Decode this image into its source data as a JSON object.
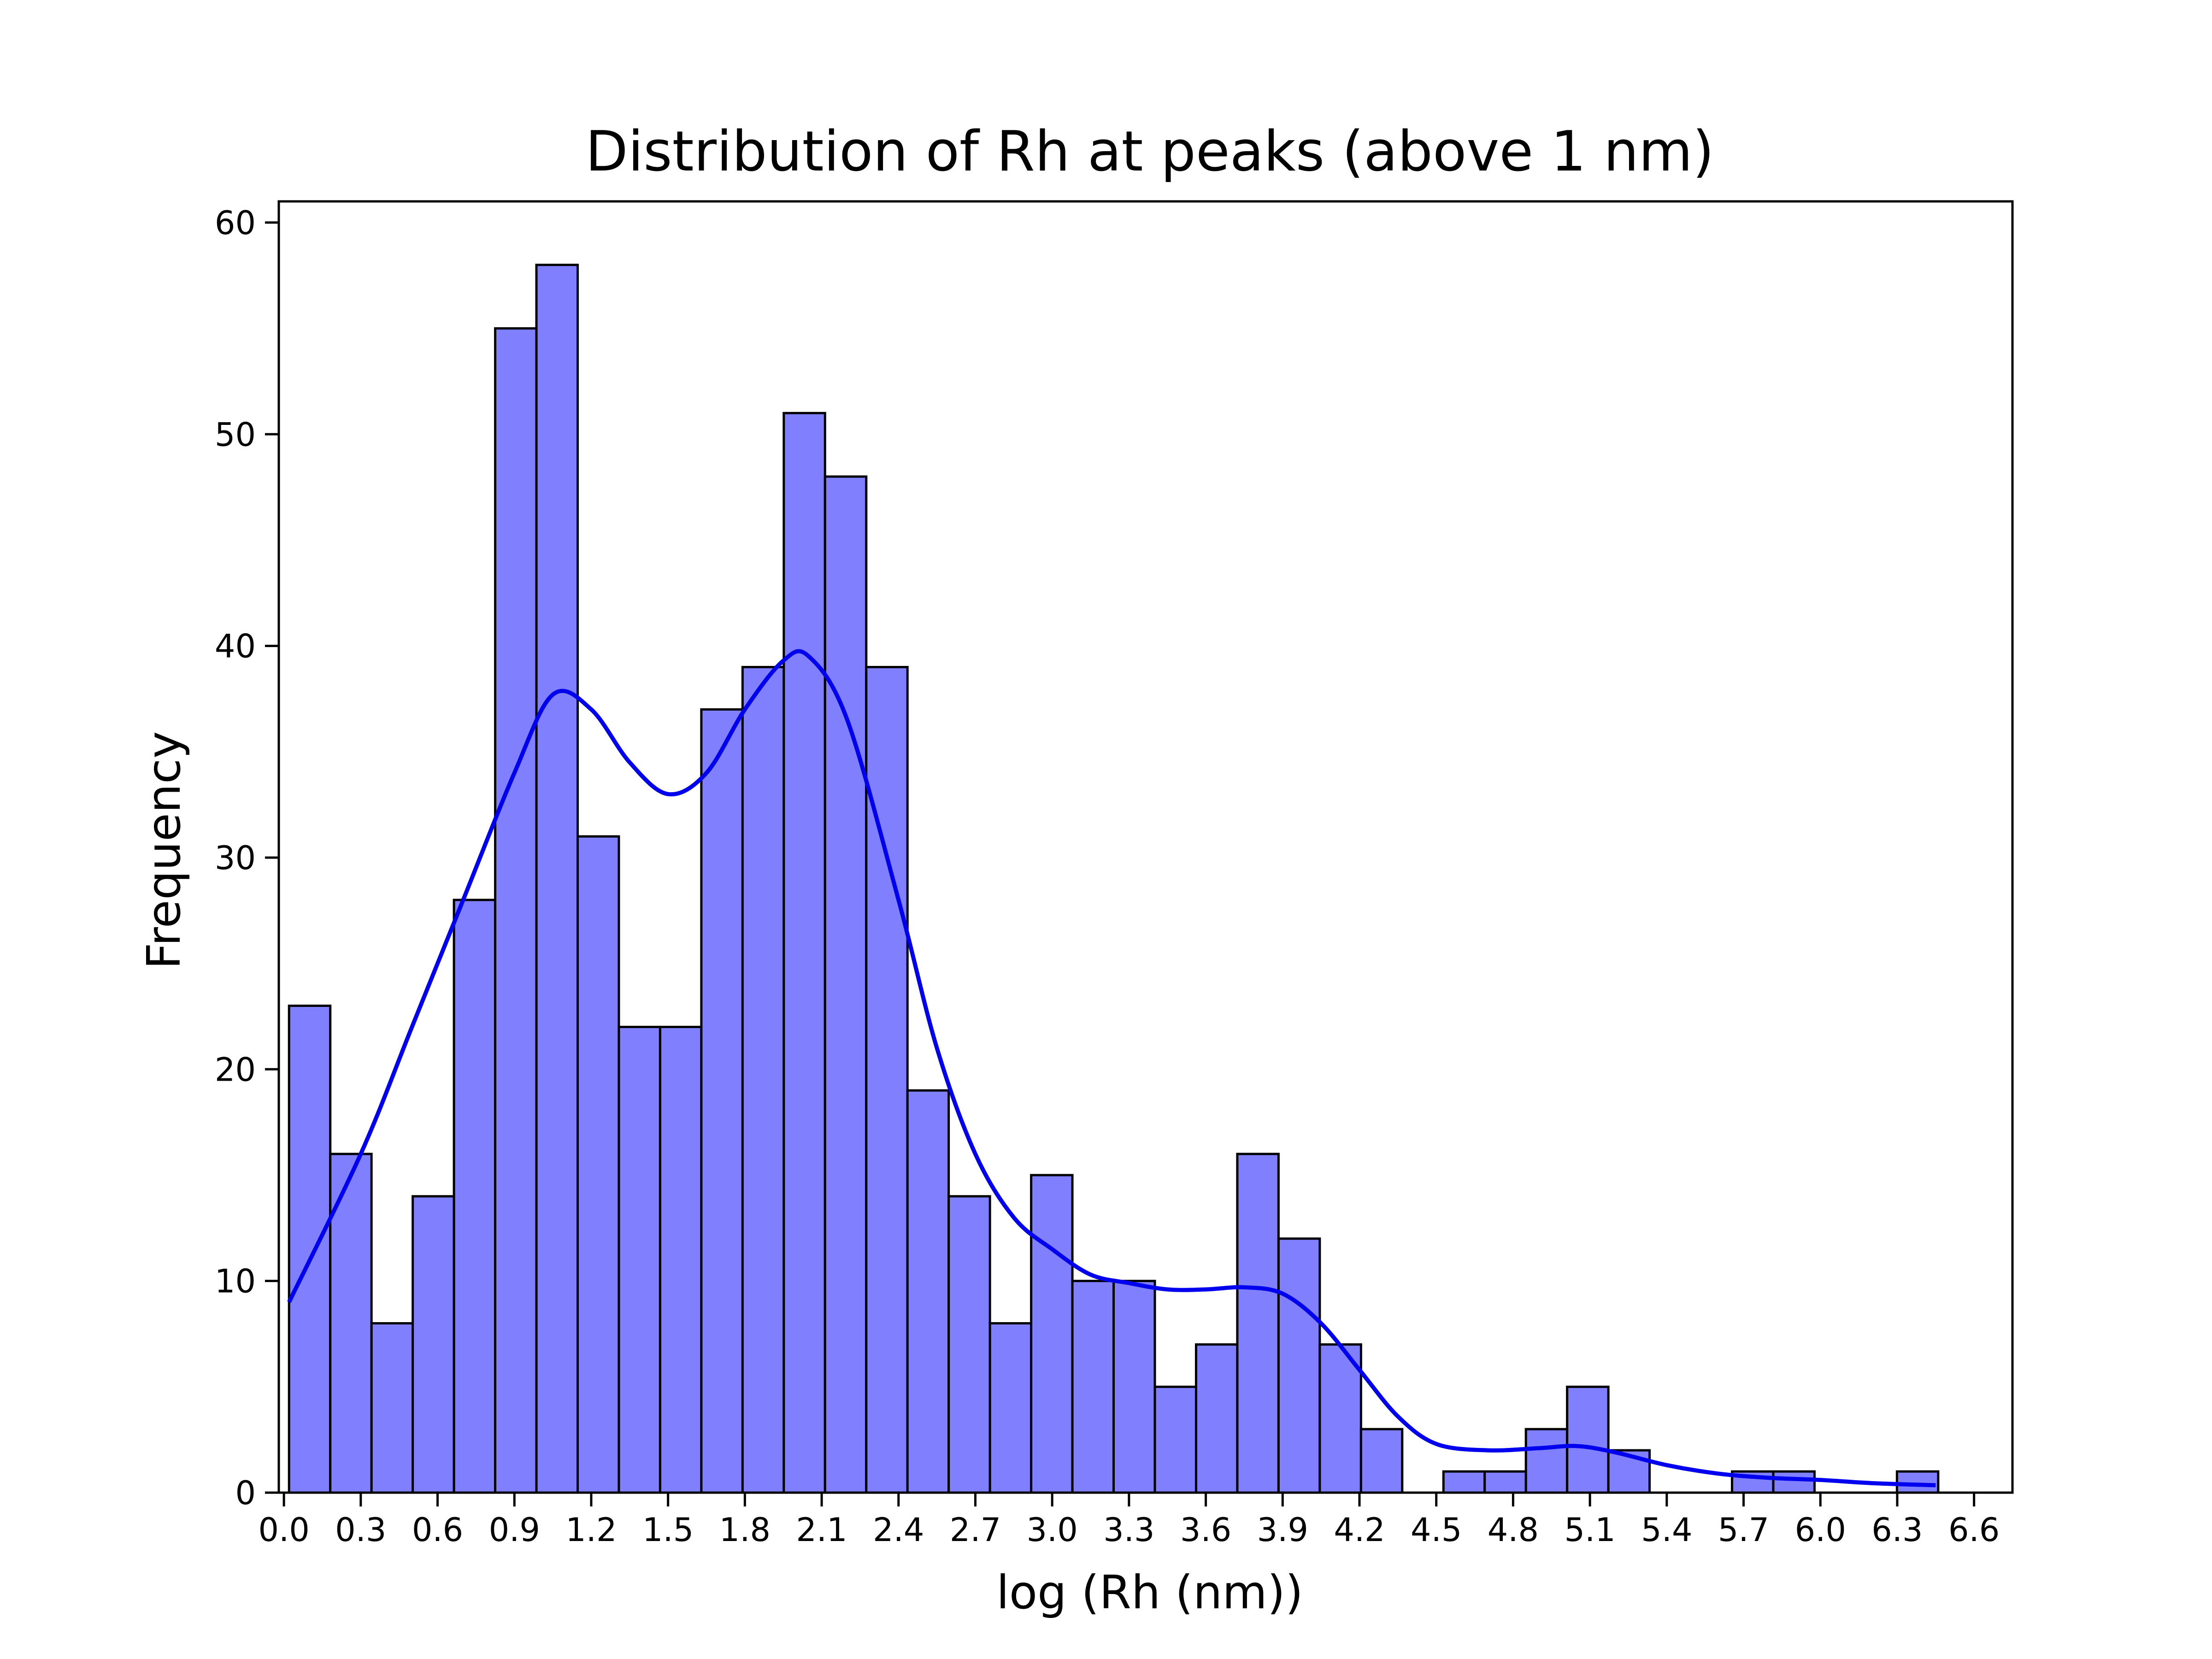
{
  "chart_data": {
    "type": "bar",
    "title": "Distribution of Rh at peaks (above 1 nm)",
    "xlabel": "log (Rh (nm))",
    "ylabel": "Frequency",
    "xlim": [
      -0.02,
      6.75
    ],
    "ylim": [
      0,
      61
    ],
    "bin_start": 0.02,
    "bin_width": 0.161,
    "values": [
      23,
      16,
      8,
      14,
      28,
      55,
      58,
      31,
      22,
      22,
      37,
      39,
      51,
      48,
      39,
      19,
      14,
      8,
      15,
      10,
      10,
      5,
      7,
      16,
      12,
      7,
      3,
      0,
      1,
      1,
      3,
      5,
      2,
      0,
      0,
      1,
      1,
      0,
      0,
      1
    ],
    "x_ticks": [
      {
        "value": 0.0,
        "label": "0.0"
      },
      {
        "value": 0.3,
        "label": "0.3"
      },
      {
        "value": 0.6,
        "label": "0.6"
      },
      {
        "value": 0.9,
        "label": "0.9"
      },
      {
        "value": 1.2,
        "label": "1.2"
      },
      {
        "value": 1.5,
        "label": "1.5"
      },
      {
        "value": 1.8,
        "label": "1.8"
      },
      {
        "value": 2.1,
        "label": "2.1"
      },
      {
        "value": 2.4,
        "label": "2.4"
      },
      {
        "value": 2.7,
        "label": "2.7"
      },
      {
        "value": 3.0,
        "label": "3.0"
      },
      {
        "value": 3.3,
        "label": "3.3"
      },
      {
        "value": 3.6,
        "label": "3.6"
      },
      {
        "value": 3.9,
        "label": "3.9"
      },
      {
        "value": 4.2,
        "label": "4.2"
      },
      {
        "value": 4.5,
        "label": "4.5"
      },
      {
        "value": 4.8,
        "label": "4.8"
      },
      {
        "value": 5.1,
        "label": "5.1"
      },
      {
        "value": 5.4,
        "label": "5.4"
      },
      {
        "value": 5.7,
        "label": "5.7"
      },
      {
        "value": 6.0,
        "label": "6.0"
      },
      {
        "value": 6.3,
        "label": "6.3"
      },
      {
        "value": 6.6,
        "label": "6.6"
      }
    ],
    "y_ticks": [
      {
        "value": 0,
        "label": "0"
      },
      {
        "value": 10,
        "label": "10"
      },
      {
        "value": 20,
        "label": "20"
      },
      {
        "value": 30,
        "label": "30"
      },
      {
        "value": 40,
        "label": "40"
      },
      {
        "value": 50,
        "label": "50"
      },
      {
        "value": 60,
        "label": "60"
      }
    ],
    "kde": {
      "name": "KDE",
      "color": "#0000ee",
      "x": [
        0.02,
        0.3,
        0.5,
        0.7,
        0.9,
        1.05,
        1.2,
        1.35,
        1.5,
        1.65,
        1.8,
        1.95,
        2.05,
        2.2,
        2.4,
        2.55,
        2.7,
        2.85,
        3.0,
        3.15,
        3.3,
        3.45,
        3.6,
        3.75,
        3.9,
        4.05,
        4.2,
        4.35,
        4.5,
        4.7,
        4.9,
        5.05,
        5.2,
        5.4,
        5.6,
        5.8,
        6.0,
        6.2,
        6.45
      ],
      "y": [
        9,
        16,
        22,
        28,
        34,
        37.7,
        37,
        34.5,
        33,
        34,
        37,
        39.3,
        39.5,
        36.5,
        28,
        21,
        16,
        13,
        11.5,
        10.3,
        9.9,
        9.6,
        9.6,
        9.7,
        9.4,
        8,
        5.8,
        3.6,
        2.3,
        2.0,
        2.1,
        2.2,
        1.9,
        1.3,
        0.9,
        0.7,
        0.6,
        0.45,
        0.35
      ]
    },
    "grid": false,
    "legend": "none",
    "colors": {
      "bar_fill": "#8080ff",
      "bar_edge": "#000000",
      "kde_line": "#0000ee"
    }
  }
}
